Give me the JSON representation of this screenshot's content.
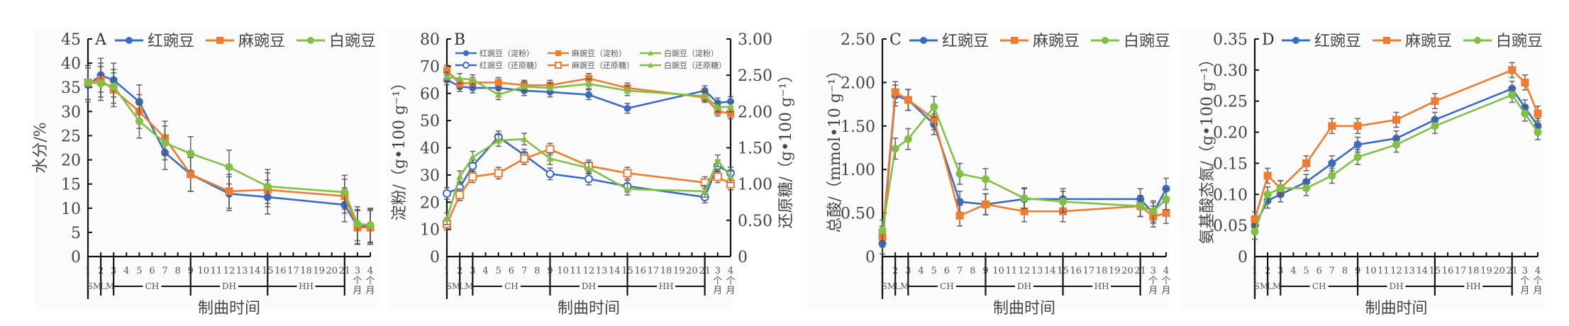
{
  "figure": {
    "x_categories": [
      "1",
      "2",
      "3",
      "4",
      "5",
      "6",
      "7",
      "8",
      "9",
      "10",
      "11",
      "12",
      "13",
      "14",
      "15",
      "16",
      "17",
      "18",
      "19",
      "20",
      "21",
      "3个月",
      "4个月"
    ],
    "sample_points": [
      "1",
      "2",
      "3",
      "5",
      "7",
      "9",
      "12",
      "15",
      "21",
      "3个月",
      "4个月"
    ],
    "stage_groups": [
      {
        "label": "SM",
        "from": "1",
        "to": "2"
      },
      {
        "label": "LM",
        "from": "2",
        "to": "3"
      },
      {
        "label": "CH",
        "from": "3",
        "to": "9"
      },
      {
        "label": "DH",
        "from": "9",
        "to": "15"
      },
      {
        "label": "HH",
        "from": "15",
        "to": "21"
      }
    ],
    "xlabel": "制曲时间",
    "colors": {
      "红豌豆": "#3a6cc2",
      "麻豌豆": "#ef7d30",
      "白豌豆": "#82c045",
      "axis": "#111111",
      "errorbar": "#555555"
    }
  },
  "chart_data": [
    {
      "type": "line",
      "panel": "A",
      "title": "",
      "xlabel": "制曲时间",
      "ylabel": "水分/%",
      "ylim": [
        0,
        45
      ],
      "yticks": [
        "0",
        "5",
        "10",
        "15",
        "20",
        "25",
        "30",
        "35",
        "40",
        "45"
      ],
      "legend": [
        "红豌豆",
        "麻豌豆",
        "白豌豆"
      ],
      "legend_position": "top",
      "x": [
        "1",
        "2",
        "3",
        "5",
        "7",
        "9",
        "12",
        "15",
        "21",
        "3个月",
        "4个月"
      ],
      "series": [
        {
          "name": "红豌豆",
          "marker": "circle",
          "values": [
            35.5,
            37.5,
            36.5,
            32.0,
            21.5,
            17.0,
            13.0,
            12.3,
            10.7,
            6.2,
            6.3
          ]
        },
        {
          "name": "麻豌豆",
          "marker": "square",
          "values": [
            36.0,
            36.5,
            34.5,
            30.0,
            24.5,
            17.0,
            13.5,
            13.8,
            12.5,
            6.0,
            6.0
          ]
        },
        {
          "name": "白豌豆",
          "marker": "circle",
          "values": [
            36.0,
            35.8,
            35.2,
            28.0,
            23.5,
            21.3,
            18.5,
            14.5,
            13.3,
            6.8,
            6.5
          ]
        }
      ],
      "error": 3.5
    },
    {
      "type": "line",
      "panel": "B",
      "title": "",
      "xlabel": "制曲时间",
      "ylabel": "淀粉/（g•100 g⁻¹）",
      "ylim": [
        0,
        80
      ],
      "yticks": [
        "0",
        "10",
        "20",
        "30",
        "40",
        "50",
        "60",
        "70",
        "80"
      ],
      "ylabel_right": "还原糖/（g•100 g⁻¹）",
      "ylim_right": [
        0,
        3.0
      ],
      "yticks_right": [
        "0",
        "0.50",
        "1.00",
        "1.50",
        "2.00",
        "2.50",
        "3.00"
      ],
      "legend": [
        "红豌豆（淀粉）",
        "麻豌豆（淀粉）",
        "白豌豆（淀粉）",
        "红豌豆（还原糖）",
        "麻豌豆（还原糖）",
        "白豌豆（还原糖）"
      ],
      "legend_position": "top",
      "x": [
        "1",
        "2",
        "3",
        "5",
        "7",
        "9",
        "12",
        "15",
        "21",
        "3个月",
        "4个月"
      ],
      "series": [
        {
          "name": "红豌豆（淀粉）",
          "axis": "left",
          "marker": "circle",
          "values": [
            65.0,
            62.5,
            62.0,
            62.0,
            61.0,
            60.5,
            59.5,
            54.5,
            61.0,
            56.5,
            57.0
          ]
        },
        {
          "name": "麻豌豆（淀粉）",
          "axis": "left",
          "marker": "square",
          "values": [
            68.5,
            63.5,
            64.0,
            64.0,
            63.0,
            63.0,
            65.5,
            62.0,
            58.5,
            53.5,
            52.5
          ]
        },
        {
          "name": "白豌豆（淀粉）",
          "axis": "left",
          "marker": "triangle",
          "values": [
            66.0,
            65.5,
            65.0,
            59.5,
            62.5,
            62.0,
            63.5,
            61.0,
            59.0,
            55.0,
            55.0
          ]
        },
        {
          "name": "红豌豆（还原糖）",
          "axis": "right",
          "marker": "circle-open",
          "values": [
            0.87,
            0.95,
            1.25,
            1.65,
            1.4,
            1.14,
            1.07,
            0.97,
            0.82,
            1.25,
            1.15
          ]
        },
        {
          "name": "麻豌豆（还原糖）",
          "axis": "right",
          "marker": "square-open",
          "values": [
            0.45,
            0.85,
            1.1,
            1.15,
            1.35,
            1.48,
            1.25,
            1.15,
            1.02,
            1.1,
            1.0
          ]
        },
        {
          "name": "白豌豆（还原糖）",
          "axis": "right",
          "marker": "triangle",
          "values": [
            0.52,
            1.1,
            1.37,
            1.6,
            1.62,
            1.35,
            1.22,
            0.93,
            0.9,
            1.32,
            1.1
          ]
        }
      ],
      "error_left": 1.8,
      "error_right": 0.08
    },
    {
      "type": "line",
      "panel": "C",
      "title": "",
      "xlabel": "制曲时间",
      "ylabel": "总酸/（mmol•10 g⁻¹）",
      "ylim": [
        0,
        2.5
      ],
      "yticks": [
        "0",
        "0.50",
        "1.00",
        "1.50",
        "2.00",
        "2.50"
      ],
      "legend": [
        "红豌豆",
        "麻豌豆",
        "白豌豆"
      ],
      "legend_position": "top",
      "x": [
        "1",
        "2",
        "3",
        "5",
        "7",
        "9",
        "12",
        "15",
        "21",
        "3个月",
        "4个月"
      ],
      "series": [
        {
          "name": "红豌豆",
          "marker": "circle",
          "values": [
            0.15,
            1.85,
            1.8,
            1.52,
            0.63,
            0.6,
            0.66,
            0.66,
            0.66,
            0.5,
            0.78
          ]
        },
        {
          "name": "麻豌豆",
          "marker": "square",
          "values": [
            0.23,
            1.89,
            1.8,
            1.58,
            0.47,
            0.6,
            0.52,
            0.52,
            0.58,
            0.46,
            0.5
          ]
        },
        {
          "name": "白豌豆",
          "marker": "circle",
          "values": [
            0.3,
            1.24,
            1.35,
            1.72,
            0.95,
            0.89,
            0.67,
            0.63,
            0.58,
            0.52,
            0.66
          ]
        }
      ],
      "error": 0.12
    },
    {
      "type": "line",
      "panel": "D",
      "title": "",
      "xlabel": "制曲时间",
      "ylabel": "氨基酸态氮/（g•100 g⁻¹）",
      "ylim": [
        0,
        0.35
      ],
      "yticks": [
        "0",
        "0.05",
        "0.10",
        "0.15",
        "0.20",
        "0.25",
        "0.30",
        "0.35"
      ],
      "legend": [
        "红豌豆",
        "麻豌豆",
        "白豌豆"
      ],
      "legend_position": "top",
      "x": [
        "1",
        "2",
        "3",
        "5",
        "7",
        "9",
        "12",
        "15",
        "21",
        "3个月",
        "4个月"
      ],
      "series": [
        {
          "name": "红豌豆",
          "marker": "circle",
          "values": [
            0.05,
            0.09,
            0.1,
            0.12,
            0.15,
            0.18,
            0.19,
            0.22,
            0.27,
            0.24,
            0.21
          ]
        },
        {
          "name": "麻豌豆",
          "marker": "square",
          "values": [
            0.06,
            0.13,
            0.11,
            0.15,
            0.21,
            0.21,
            0.22,
            0.25,
            0.3,
            0.28,
            0.23
          ]
        },
        {
          "name": "白豌豆",
          "marker": "circle",
          "values": [
            0.04,
            0.1,
            0.11,
            0.11,
            0.13,
            0.16,
            0.18,
            0.21,
            0.26,
            0.23,
            0.2
          ]
        }
      ],
      "error": 0.012
    }
  ]
}
